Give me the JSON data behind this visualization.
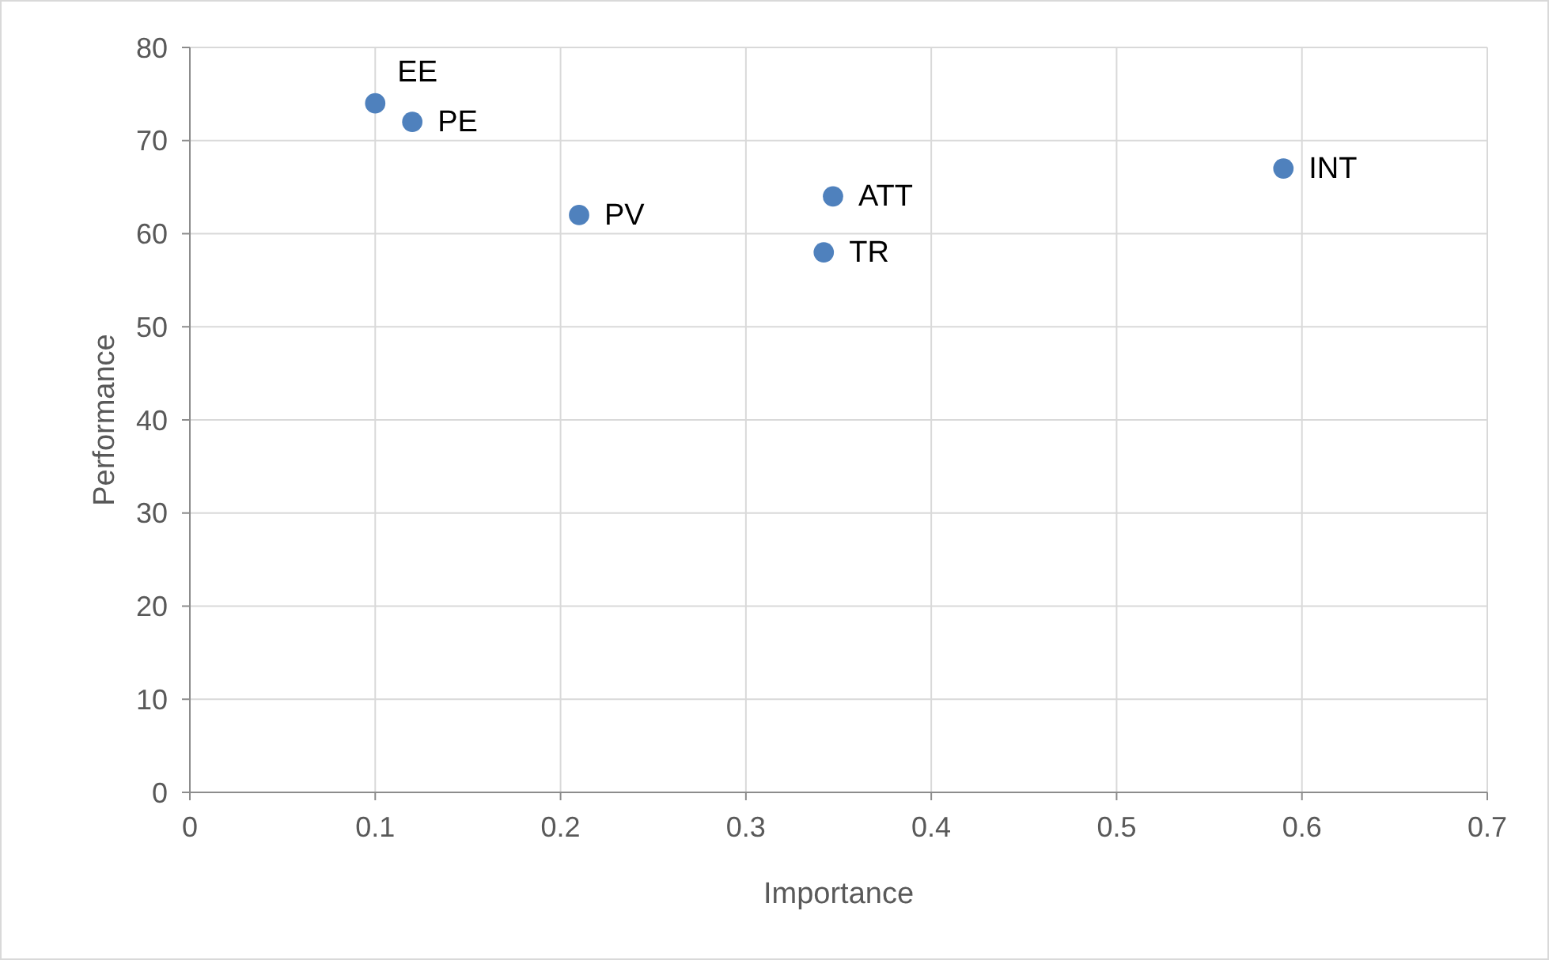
{
  "chart_data": {
    "type": "scatter",
    "xlabel": "Importance",
    "ylabel": "Performance",
    "x": [
      0.1,
      0.12,
      0.21,
      0.347,
      0.342,
      0.59
    ],
    "series": [
      {
        "color": "#4f81bd",
        "values": [
          74,
          72,
          62,
          64,
          58,
          67
        ]
      }
    ],
    "xlim": [
      0,
      0.7
    ],
    "xticks": [
      0,
      0.1,
      0.2,
      0.3,
      0.4,
      0.5,
      0.6,
      0.7
    ],
    "ylim": [
      0,
      80
    ],
    "yticks": [
      0,
      10,
      20,
      30,
      40,
      50,
      60,
      70,
      80
    ],
    "grid": true,
    "marker": "circle",
    "annotations": [
      {
        "text": "EE",
        "x": 0.1,
        "y": 74
      },
      {
        "text": "PE",
        "x": 0.12,
        "y": 72
      },
      {
        "text": "PV",
        "x": 0.21,
        "y": 62
      },
      {
        "text": "ATT",
        "x": 0.347,
        "y": 64
      },
      {
        "text": "TR",
        "x": 0.342,
        "y": 58
      },
      {
        "text": "INT",
        "x": 0.59,
        "y": 67
      }
    ]
  }
}
